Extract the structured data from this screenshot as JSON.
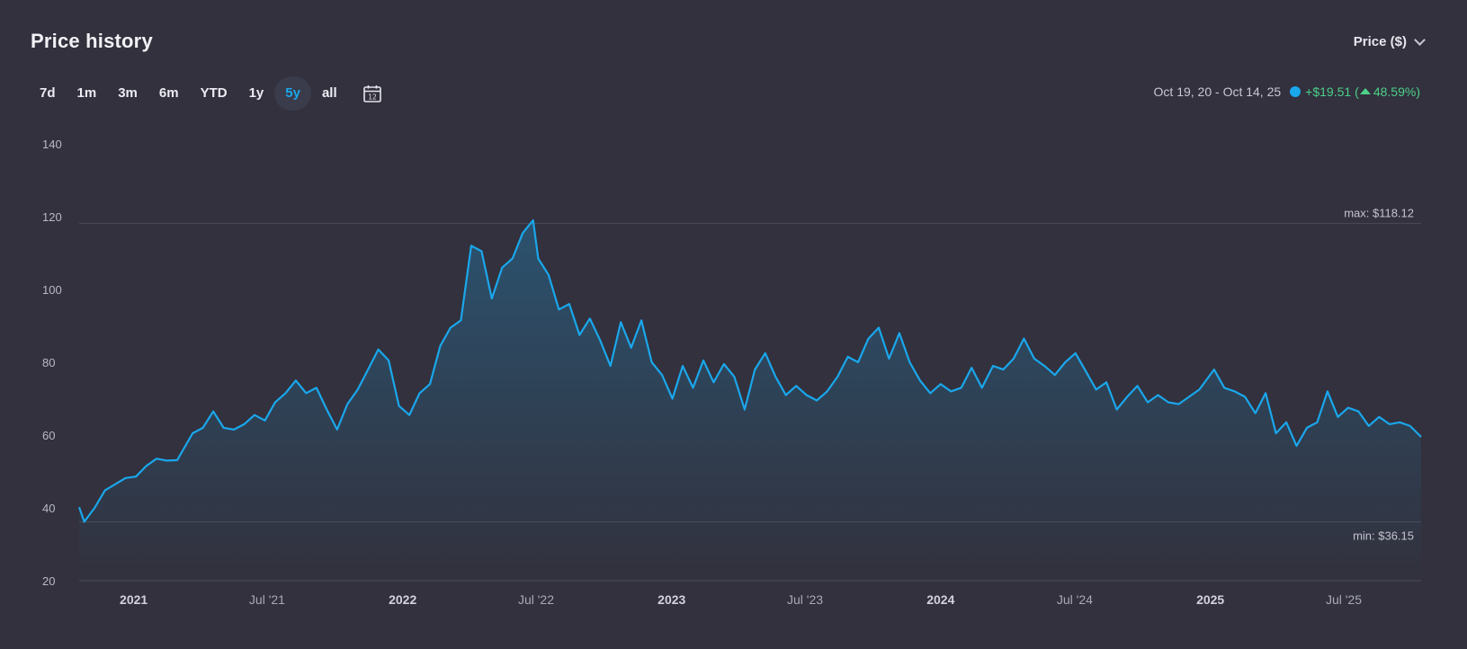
{
  "header": {
    "title": "Price history",
    "metric_label": "Price ($)"
  },
  "ranges": [
    {
      "label": "7d",
      "active": false
    },
    {
      "label": "1m",
      "active": false
    },
    {
      "label": "3m",
      "active": false
    },
    {
      "label": "6m",
      "active": false
    },
    {
      "label": "YTD",
      "active": false
    },
    {
      "label": "1y",
      "active": false
    },
    {
      "label": "5y",
      "active": true
    },
    {
      "label": "all",
      "active": false
    }
  ],
  "calendar": {
    "icon": "calendar-icon",
    "day": "12"
  },
  "summary": {
    "period": "Oct 19, 20 - Oct 14, 25",
    "change_abs": "+$19.51",
    "change_pct": "48.59%",
    "open_paren": "(",
    "close_paren": ")"
  },
  "colors": {
    "line": "#1aa7ec",
    "positive": "#4cd18a",
    "background": "#32313d"
  },
  "chart_data": {
    "type": "area",
    "ylim": [
      20,
      140
    ],
    "yticks": [
      20,
      40,
      60,
      80,
      100,
      120,
      140
    ],
    "x_range": [
      "2020-10-19",
      "2025-10-14"
    ],
    "xticks": [
      {
        "date": "2021-01-01",
        "label": "2021",
        "major": true
      },
      {
        "date": "2021-07-01",
        "label": "Jul '21",
        "major": false
      },
      {
        "date": "2022-01-01",
        "label": "2022",
        "major": true
      },
      {
        "date": "2022-07-01",
        "label": "Jul '22",
        "major": false
      },
      {
        "date": "2023-01-01",
        "label": "2023",
        "major": true
      },
      {
        "date": "2023-07-01",
        "label": "Jul '23",
        "major": false
      },
      {
        "date": "2024-01-01",
        "label": "2024",
        "major": true
      },
      {
        "date": "2024-07-01",
        "label": "Jul '24",
        "major": false
      },
      {
        "date": "2025-01-01",
        "label": "2025",
        "major": true
      },
      {
        "date": "2025-07-01",
        "label": "Jul '25",
        "major": false
      }
    ],
    "max_label": "max: $118.12",
    "min_label": "min: $36.15",
    "max_value": 118.12,
    "min_value": 36.15,
    "series": [
      {
        "points": [
          [
            "2020-10-19",
            40.2
          ],
          [
            "2020-10-26",
            36.2
          ],
          [
            "2020-11-09",
            40.0
          ],
          [
            "2020-11-23",
            44.8
          ],
          [
            "2020-12-07",
            46.5
          ],
          [
            "2020-12-21",
            48.2
          ],
          [
            "2021-01-04",
            48.6
          ],
          [
            "2021-01-18",
            51.5
          ],
          [
            "2021-02-01",
            53.5
          ],
          [
            "2021-02-15",
            53.0
          ],
          [
            "2021-03-01",
            53.1
          ],
          [
            "2021-03-22",
            60.5
          ],
          [
            "2021-04-05",
            62.0
          ],
          [
            "2021-04-19",
            66.5
          ],
          [
            "2021-05-03",
            62.0
          ],
          [
            "2021-05-17",
            61.5
          ],
          [
            "2021-05-31",
            63.0
          ],
          [
            "2021-06-14",
            65.5
          ],
          [
            "2021-06-28",
            64.0
          ],
          [
            "2021-07-12",
            69.0
          ],
          [
            "2021-07-26",
            71.5
          ],
          [
            "2021-08-09",
            75.0
          ],
          [
            "2021-08-23",
            71.5
          ],
          [
            "2021-09-06",
            73.0
          ],
          [
            "2021-09-20",
            67.0
          ],
          [
            "2021-10-04",
            61.5
          ],
          [
            "2021-10-18",
            68.5
          ],
          [
            "2021-11-01",
            72.5
          ],
          [
            "2021-11-15",
            78.0
          ],
          [
            "2021-11-29",
            83.5
          ],
          [
            "2021-12-13",
            80.5
          ],
          [
            "2021-12-27",
            68.0
          ],
          [
            "2022-01-10",
            65.5
          ],
          [
            "2022-01-24",
            71.5
          ],
          [
            "2022-02-07",
            74.0
          ],
          [
            "2022-02-21",
            84.5
          ],
          [
            "2022-03-07",
            89.5
          ],
          [
            "2022-03-21",
            91.5
          ],
          [
            "2022-04-04",
            112.0
          ],
          [
            "2022-04-18",
            110.5
          ],
          [
            "2022-05-02",
            97.5
          ],
          [
            "2022-05-16",
            106.0
          ],
          [
            "2022-05-30",
            108.5
          ],
          [
            "2022-06-13",
            115.5
          ],
          [
            "2022-06-27",
            119.0
          ],
          [
            "2022-07-04",
            108.5
          ],
          [
            "2022-07-18",
            104.0
          ],
          [
            "2022-08-01",
            94.5
          ],
          [
            "2022-08-15",
            96.0
          ],
          [
            "2022-08-29",
            87.5
          ],
          [
            "2022-09-12",
            92.0
          ],
          [
            "2022-09-26",
            86.0
          ],
          [
            "2022-10-10",
            79.0
          ],
          [
            "2022-10-24",
            91.0
          ],
          [
            "2022-11-07",
            84.0
          ],
          [
            "2022-11-21",
            91.5
          ],
          [
            "2022-12-05",
            80.0
          ],
          [
            "2022-12-19",
            76.5
          ],
          [
            "2023-01-02",
            70.0
          ],
          [
            "2023-01-16",
            79.0
          ],
          [
            "2023-01-30",
            73.0
          ],
          [
            "2023-02-13",
            80.5
          ],
          [
            "2023-02-27",
            74.5
          ],
          [
            "2023-03-13",
            79.5
          ],
          [
            "2023-03-27",
            76.0
          ],
          [
            "2023-04-10",
            67.0
          ],
          [
            "2023-04-24",
            78.0
          ],
          [
            "2023-05-08",
            82.5
          ],
          [
            "2023-05-22",
            76.0
          ],
          [
            "2023-06-05",
            71.0
          ],
          [
            "2023-06-19",
            73.5
          ],
          [
            "2023-07-03",
            71.0
          ],
          [
            "2023-07-17",
            69.5
          ],
          [
            "2023-07-31",
            72.0
          ],
          [
            "2023-08-14",
            76.0
          ],
          [
            "2023-08-28",
            81.5
          ],
          [
            "2023-09-11",
            80.0
          ],
          [
            "2023-09-25",
            86.5
          ],
          [
            "2023-10-09",
            89.5
          ],
          [
            "2023-10-23",
            81.0
          ],
          [
            "2023-11-06",
            88.0
          ],
          [
            "2023-11-20",
            80.0
          ],
          [
            "2023-12-04",
            75.0
          ],
          [
            "2023-12-18",
            71.5
          ],
          [
            "2024-01-01",
            74.0
          ],
          [
            "2024-01-15",
            72.0
          ],
          [
            "2024-01-29",
            73.0
          ],
          [
            "2024-02-12",
            78.5
          ],
          [
            "2024-02-26",
            73.0
          ],
          [
            "2024-03-12",
            79.0
          ],
          [
            "2024-03-26",
            78.0
          ],
          [
            "2024-04-09",
            81.0
          ],
          [
            "2024-04-23",
            86.5
          ],
          [
            "2024-05-07",
            81.0
          ],
          [
            "2024-05-21",
            79.0
          ],
          [
            "2024-06-04",
            76.5
          ],
          [
            "2024-06-18",
            80.0
          ],
          [
            "2024-07-02",
            82.5
          ],
          [
            "2024-07-16",
            77.5
          ],
          [
            "2024-07-30",
            72.5
          ],
          [
            "2024-08-13",
            74.5
          ],
          [
            "2024-08-27",
            67.0
          ],
          [
            "2024-09-10",
            70.5
          ],
          [
            "2024-09-24",
            73.5
          ],
          [
            "2024-10-08",
            69.0
          ],
          [
            "2024-10-22",
            71.0
          ],
          [
            "2024-11-05",
            69.0
          ],
          [
            "2024-11-19",
            68.5
          ],
          [
            "2024-12-03",
            70.5
          ],
          [
            "2024-12-17",
            72.5
          ],
          [
            "2025-01-06",
            78.0
          ],
          [
            "2025-01-20",
            73.0
          ],
          [
            "2025-02-03",
            72.0
          ],
          [
            "2025-02-17",
            70.5
          ],
          [
            "2025-03-03",
            66.0
          ],
          [
            "2025-03-17",
            71.5
          ],
          [
            "2025-03-31",
            60.5
          ],
          [
            "2025-04-14",
            63.5
          ],
          [
            "2025-04-28",
            57.0
          ],
          [
            "2025-05-12",
            62.0
          ],
          [
            "2025-05-26",
            63.5
          ],
          [
            "2025-06-09",
            72.0
          ],
          [
            "2025-06-23",
            65.0
          ],
          [
            "2025-07-07",
            67.5
          ],
          [
            "2025-07-21",
            66.5
          ],
          [
            "2025-08-04",
            62.5
          ],
          [
            "2025-08-18",
            65.0
          ],
          [
            "2025-09-01",
            63.0
          ],
          [
            "2025-09-15",
            63.5
          ],
          [
            "2025-09-29",
            62.5
          ],
          [
            "2025-10-14",
            59.5
          ]
        ]
      }
    ]
  }
}
